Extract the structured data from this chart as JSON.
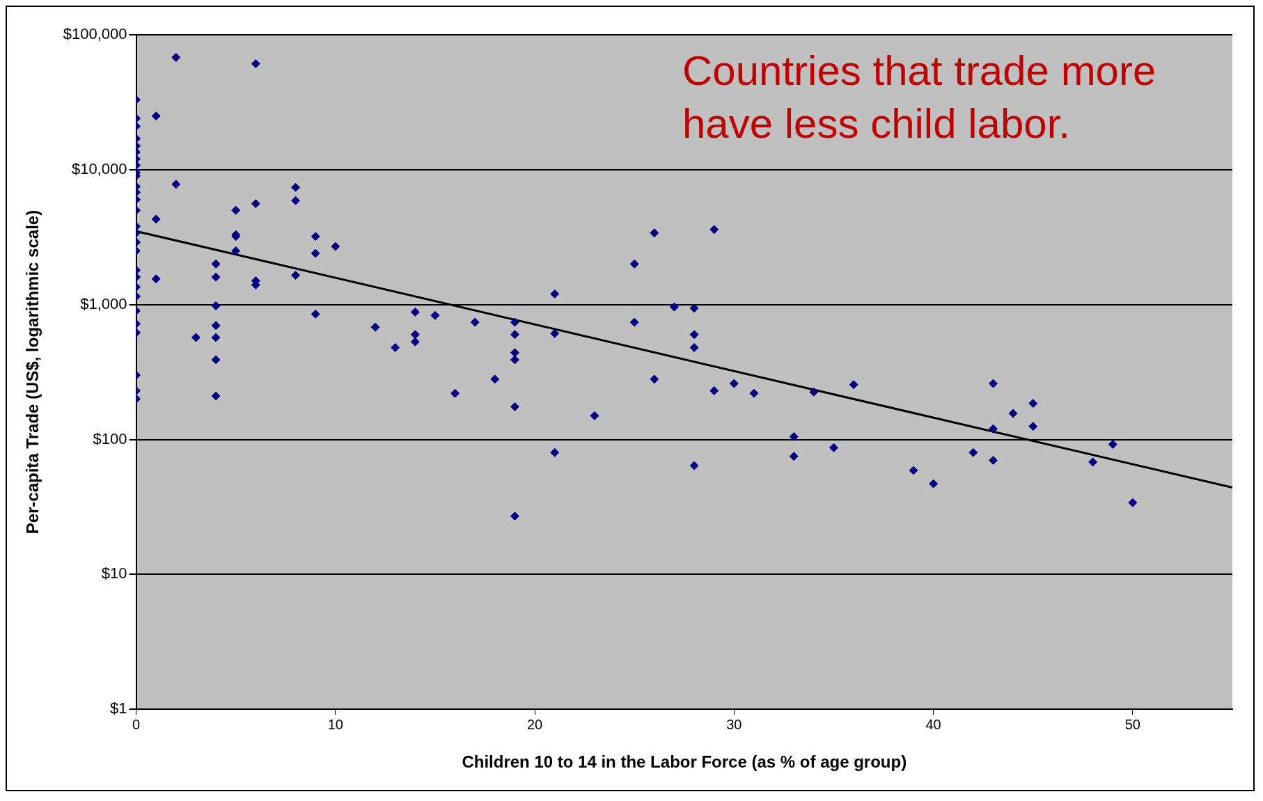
{
  "chart_data": {
    "type": "scatter",
    "xlabel": "Children 10 to 14 in the Labor Force (as % of age group)",
    "ylabel": "Per-capita Trade (US$, logarithmic scale)",
    "annotations": [
      "Countries that trade more have less child labor."
    ],
    "log": "y",
    "grid": "y",
    "legend": false,
    "marker": "diamond",
    "xlim": [
      0,
      55
    ],
    "xticks": [
      0,
      10,
      20,
      30,
      40,
      50
    ],
    "ylim": [
      1,
      100000
    ],
    "yticks": [
      {
        "value": 1,
        "label": "$1"
      },
      {
        "value": 10,
        "label": "$10"
      },
      {
        "value": 100,
        "label": "$100"
      },
      {
        "value": 1000,
        "label": "$1,000"
      },
      {
        "value": 10000,
        "label": "$10,000"
      },
      {
        "value": 100000,
        "label": "$100,000"
      }
    ],
    "series": [
      {
        "type": "scatter",
        "color": "#000080",
        "x": [
          0,
          0,
          0,
          0,
          0,
          0,
          0,
          0,
          0,
          0,
          0,
          0,
          0,
          0,
          0,
          0,
          0,
          0,
          0,
          0,
          0,
          0,
          0,
          0,
          0,
          0,
          0,
          0,
          1,
          1,
          1,
          2,
          2,
          3,
          4,
          4,
          4,
          4,
          4,
          4,
          4,
          5,
          5,
          5,
          5,
          6,
          6,
          6,
          6,
          8,
          8,
          8,
          9,
          9,
          9,
          10,
          12,
          13,
          14,
          14,
          14,
          15,
          16,
          17,
          18,
          19,
          19,
          19,
          19,
          19,
          19,
          21,
          21,
          21,
          23,
          25,
          25,
          26,
          26,
          27,
          28,
          28,
          28,
          28,
          29,
          29,
          30,
          31,
          33,
          33,
          34,
          35,
          36,
          39,
          40,
          42,
          43,
          43,
          43,
          44,
          45,
          45,
          48,
          49,
          50
        ],
        "values": [
          33000,
          24000,
          21000,
          17000,
          15000,
          13500,
          12000,
          10800,
          9500,
          9000,
          7500,
          6800,
          6000,
          5000,
          3800,
          3400,
          2900,
          2500,
          1800,
          1600,
          1350,
          1150,
          900,
          720,
          620,
          300,
          230,
          200,
          25000,
          4300,
          1550,
          68000,
          7800,
          570,
          2000,
          1600,
          980,
          700,
          570,
          390,
          210,
          5000,
          3300,
          3200,
          2500,
          61000,
          5600,
          1500,
          1400,
          7400,
          5900,
          1650,
          3200,
          2400,
          850,
          2700,
          680,
          480,
          880,
          600,
          530,
          830,
          220,
          740,
          280,
          740,
          600,
          440,
          390,
          175,
          27,
          1200,
          610,
          80,
          150,
          2000,
          740,
          3400,
          280,
          960,
          940,
          600,
          480,
          64,
          3600,
          230,
          260,
          220,
          105,
          75,
          225,
          87,
          255,
          59,
          47,
          80,
          260,
          120,
          70,
          156,
          185,
          125,
          68,
          92,
          34
        ]
      },
      {
        "type": "line",
        "color": "#000000",
        "marker": "none",
        "x": [
          0,
          55
        ],
        "values": [
          3500,
          44
        ]
      }
    ]
  }
}
